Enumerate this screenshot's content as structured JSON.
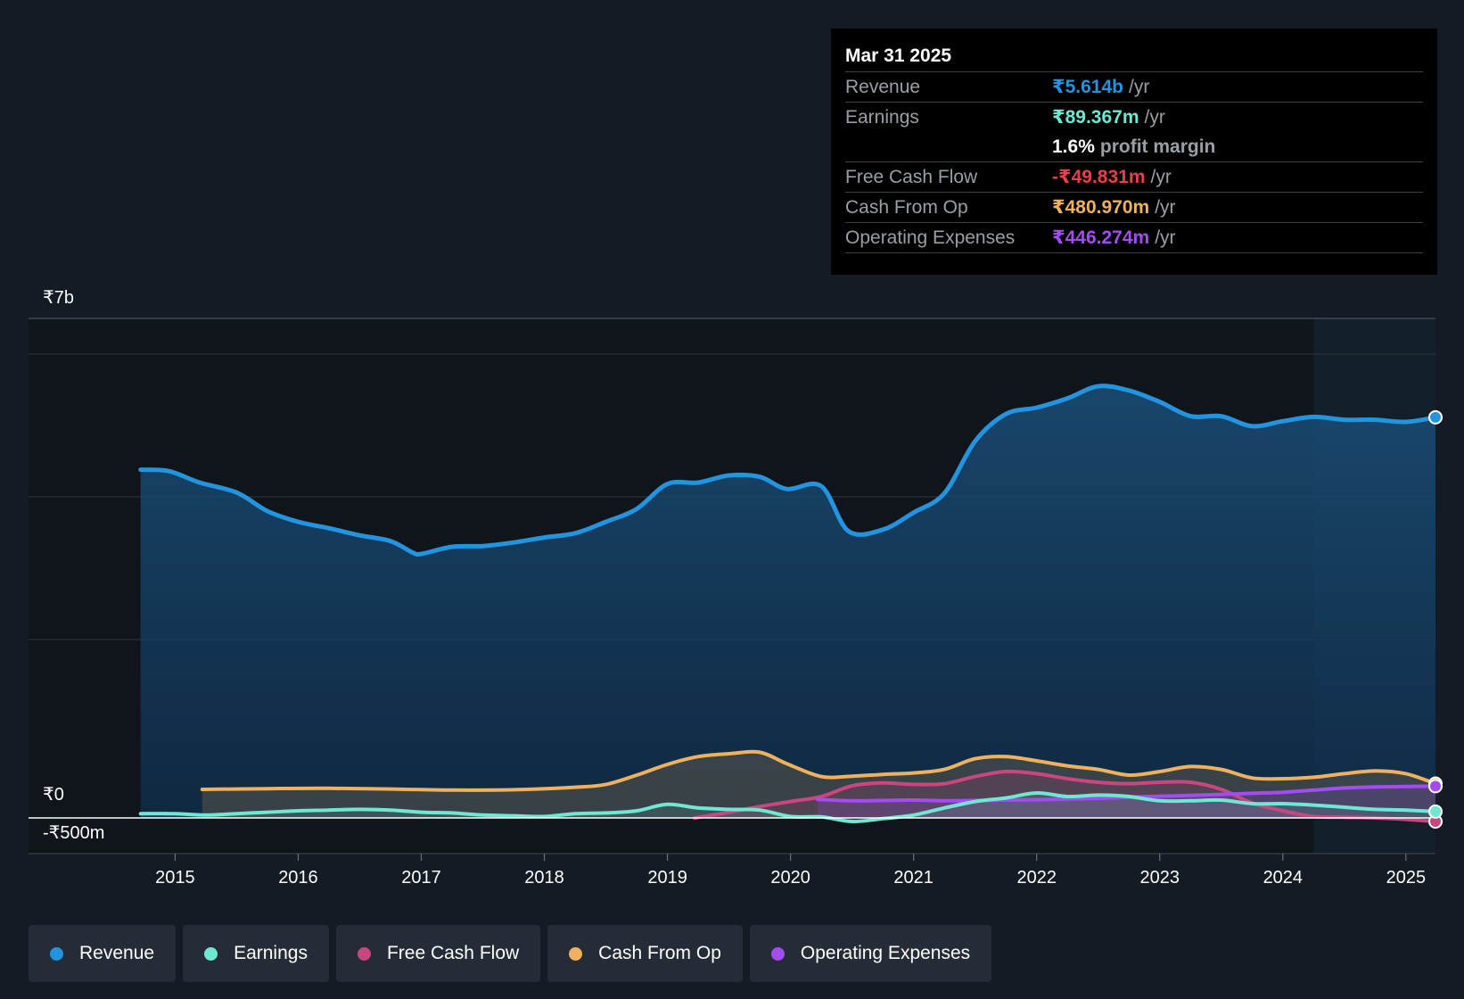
{
  "tooltip": {
    "date": "Mar 31 2025",
    "rows": {
      "revenue": {
        "label": "Revenue",
        "value": "₹5.614b",
        "unit": "/yr",
        "color": "#2394df"
      },
      "earnings": {
        "label": "Earnings",
        "value": "₹89.367m",
        "unit": "/yr",
        "color": "#6ee7d3"
      },
      "margin": {
        "value": "1.6%",
        "unit": "profit margin",
        "color": "#ffffff"
      },
      "fcf": {
        "label": "Free Cash Flow",
        "value": "-₹49.831m",
        "unit": "/yr",
        "color": "#e83f4b"
      },
      "cfo": {
        "label": "Cash From Op",
        "value": "₹480.970m",
        "unit": "/yr",
        "color": "#f0b15f"
      },
      "opex": {
        "label": "Operating Expenses",
        "value": "₹446.274m",
        "unit": "/yr",
        "color": "#a24cf2"
      }
    }
  },
  "legend": [
    {
      "label": "Revenue",
      "color": "#2394df"
    },
    {
      "label": "Earnings",
      "color": "#6ee7d3"
    },
    {
      "label": "Free Cash Flow",
      "color": "#c9467e"
    },
    {
      "label": "Cash From Op",
      "color": "#f0b15f"
    },
    {
      "label": "Operating Expenses",
      "color": "#a24cf2"
    }
  ],
  "chart_data": {
    "type": "area",
    "title": "",
    "xlabel": "",
    "ylabel": "",
    "ylim": [
      -500,
      7000
    ],
    "y_unit": "₹m",
    "y_labels": [
      "₹7b",
      "₹0",
      "-₹500m"
    ],
    "x_ticks": [
      "2015",
      "2016",
      "2017",
      "2018",
      "2019",
      "2020",
      "2021",
      "2022",
      "2023",
      "2024",
      "2025"
    ],
    "x_range": [
      2014.28,
      2025.24
    ],
    "forecast_start": 2024.25,
    "series": [
      {
        "name": "Revenue",
        "color": "#2394df",
        "fill": true,
        "points": [
          [
            2014.72,
            4880
          ],
          [
            2014.95,
            4860
          ],
          [
            2015.2,
            4700
          ],
          [
            2015.5,
            4560
          ],
          [
            2015.75,
            4300
          ],
          [
            2016.0,
            4150
          ],
          [
            2016.25,
            4060
          ],
          [
            2016.5,
            3960
          ],
          [
            2016.75,
            3880
          ],
          [
            2016.93,
            3720
          ],
          [
            2017.0,
            3700
          ],
          [
            2017.25,
            3800
          ],
          [
            2017.5,
            3810
          ],
          [
            2017.75,
            3860
          ],
          [
            2018.0,
            3930
          ],
          [
            2018.25,
            3990
          ],
          [
            2018.5,
            4150
          ],
          [
            2018.75,
            4330
          ],
          [
            2019.0,
            4680
          ],
          [
            2019.25,
            4700
          ],
          [
            2019.5,
            4800
          ],
          [
            2019.75,
            4780
          ],
          [
            2019.97,
            4610
          ],
          [
            2020.25,
            4650
          ],
          [
            2020.47,
            4020
          ],
          [
            2020.75,
            4040
          ],
          [
            2021.0,
            4280
          ],
          [
            2021.25,
            4550
          ],
          [
            2021.5,
            5280
          ],
          [
            2021.75,
            5660
          ],
          [
            2022.0,
            5750
          ],
          [
            2022.25,
            5880
          ],
          [
            2022.5,
            6050
          ],
          [
            2022.75,
            5990
          ],
          [
            2023.0,
            5830
          ],
          [
            2023.25,
            5630
          ],
          [
            2023.5,
            5630
          ],
          [
            2023.75,
            5490
          ],
          [
            2024.0,
            5560
          ],
          [
            2024.25,
            5620
          ],
          [
            2024.5,
            5580
          ],
          [
            2024.75,
            5580
          ],
          [
            2025.0,
            5550
          ],
          [
            2025.24,
            5614
          ]
        ]
      },
      {
        "name": "Cash From Op",
        "color": "#f0b15f",
        "fill": true,
        "points": [
          [
            2015.22,
            400
          ],
          [
            2015.75,
            410
          ],
          [
            2016.25,
            415
          ],
          [
            2016.75,
            405
          ],
          [
            2017.25,
            390
          ],
          [
            2017.75,
            395
          ],
          [
            2018.25,
            430
          ],
          [
            2018.5,
            470
          ],
          [
            2018.75,
            600
          ],
          [
            2019.0,
            750
          ],
          [
            2019.25,
            860
          ],
          [
            2019.5,
            900
          ],
          [
            2019.75,
            920
          ],
          [
            2019.97,
            760
          ],
          [
            2020.25,
            580
          ],
          [
            2020.5,
            585
          ],
          [
            2020.75,
            610
          ],
          [
            2021.0,
            630
          ],
          [
            2021.25,
            680
          ],
          [
            2021.5,
            830
          ],
          [
            2021.75,
            860
          ],
          [
            2022.0,
            800
          ],
          [
            2022.25,
            730
          ],
          [
            2022.5,
            680
          ],
          [
            2022.75,
            600
          ],
          [
            2023.0,
            650
          ],
          [
            2023.25,
            720
          ],
          [
            2023.5,
            680
          ],
          [
            2023.75,
            560
          ],
          [
            2024.0,
            550
          ],
          [
            2024.25,
            570
          ],
          [
            2024.5,
            620
          ],
          [
            2024.75,
            660
          ],
          [
            2025.0,
            620
          ],
          [
            2025.24,
            481
          ]
        ]
      },
      {
        "name": "Free Cash Flow",
        "color": "#c9467e",
        "fill": true,
        "points": [
          [
            2019.22,
            0
          ],
          [
            2019.5,
            80
          ],
          [
            2019.75,
            160
          ],
          [
            2020.0,
            230
          ],
          [
            2020.25,
            300
          ],
          [
            2020.5,
            450
          ],
          [
            2020.75,
            490
          ],
          [
            2021.0,
            470
          ],
          [
            2021.25,
            480
          ],
          [
            2021.5,
            580
          ],
          [
            2021.75,
            650
          ],
          [
            2022.0,
            620
          ],
          [
            2022.25,
            550
          ],
          [
            2022.5,
            500
          ],
          [
            2022.75,
            480
          ],
          [
            2023.0,
            500
          ],
          [
            2023.25,
            500
          ],
          [
            2023.5,
            400
          ],
          [
            2023.75,
            210
          ],
          [
            2024.0,
            100
          ],
          [
            2024.25,
            20
          ],
          [
            2024.5,
            10
          ],
          [
            2024.75,
            0
          ],
          [
            2025.0,
            -20
          ],
          [
            2025.24,
            -50
          ]
        ]
      },
      {
        "name": "Operating Expenses",
        "color": "#a24cf2",
        "fill": true,
        "points": [
          [
            2020.22,
            260
          ],
          [
            2020.5,
            240
          ],
          [
            2020.75,
            245
          ],
          [
            2021.0,
            250
          ],
          [
            2021.25,
            240
          ],
          [
            2021.5,
            245
          ],
          [
            2021.75,
            250
          ],
          [
            2022.0,
            255
          ],
          [
            2022.25,
            265
          ],
          [
            2022.5,
            275
          ],
          [
            2022.75,
            290
          ],
          [
            2023.0,
            305
          ],
          [
            2023.25,
            315
          ],
          [
            2023.5,
            330
          ],
          [
            2023.75,
            345
          ],
          [
            2024.0,
            360
          ],
          [
            2024.25,
            390
          ],
          [
            2024.5,
            420
          ],
          [
            2024.75,
            435
          ],
          [
            2025.0,
            440
          ],
          [
            2025.24,
            446
          ]
        ]
      },
      {
        "name": "Earnings",
        "color": "#6ee7d3",
        "fill": true,
        "points": [
          [
            2014.72,
            60
          ],
          [
            2015.0,
            60
          ],
          [
            2015.25,
            40
          ],
          [
            2015.5,
            60
          ],
          [
            2015.75,
            80
          ],
          [
            2016.0,
            100
          ],
          [
            2016.25,
            110
          ],
          [
            2016.5,
            120
          ],
          [
            2016.75,
            110
          ],
          [
            2017.0,
            80
          ],
          [
            2017.25,
            70
          ],
          [
            2017.5,
            40
          ],
          [
            2017.75,
            30
          ],
          [
            2018.0,
            20
          ],
          [
            2018.25,
            60
          ],
          [
            2018.5,
            70
          ],
          [
            2018.75,
            100
          ],
          [
            2019.0,
            190
          ],
          [
            2019.25,
            140
          ],
          [
            2019.5,
            120
          ],
          [
            2019.75,
            110
          ],
          [
            2020.0,
            20
          ],
          [
            2020.25,
            15
          ],
          [
            2020.5,
            -50
          ],
          [
            2020.75,
            -10
          ],
          [
            2021.0,
            40
          ],
          [
            2021.25,
            140
          ],
          [
            2021.5,
            230
          ],
          [
            2021.75,
            280
          ],
          [
            2022.0,
            350
          ],
          [
            2022.25,
            300
          ],
          [
            2022.5,
            320
          ],
          [
            2022.75,
            300
          ],
          [
            2023.0,
            240
          ],
          [
            2023.25,
            240
          ],
          [
            2023.5,
            250
          ],
          [
            2023.75,
            200
          ],
          [
            2024.0,
            200
          ],
          [
            2024.25,
            180
          ],
          [
            2024.5,
            150
          ],
          [
            2024.75,
            120
          ],
          [
            2025.0,
            110
          ],
          [
            2025.24,
            89
          ]
        ]
      }
    ]
  }
}
